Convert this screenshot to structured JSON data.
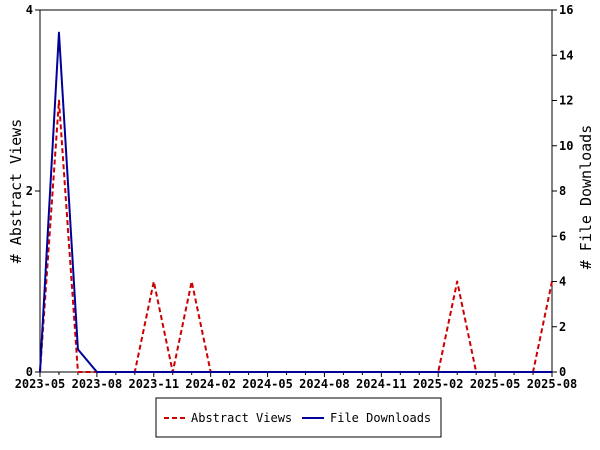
{
  "chart_data": {
    "type": "line",
    "x_labels": [
      "2023-05",
      "2023-08",
      "2023-11",
      "2024-02",
      "2024-05",
      "2024-08",
      "2024-11",
      "2025-02",
      "2025-05",
      "2025-08"
    ],
    "y_left": {
      "label": "# Abstract Views",
      "range": [
        0,
        4
      ],
      "ticks": [
        0,
        2,
        4
      ]
    },
    "y_right": {
      "label": "# File Downloads",
      "range": [
        0,
        16
      ],
      "ticks": [
        0,
        2,
        4,
        6,
        8,
        10,
        12,
        14,
        16
      ]
    },
    "months": [
      "2023-05",
      "2023-06",
      "2023-07",
      "2023-08",
      "2023-09",
      "2023-10",
      "2023-11",
      "2023-12",
      "2024-01",
      "2024-02",
      "2024-03",
      "2024-04",
      "2024-05",
      "2024-06",
      "2024-07",
      "2024-08",
      "2024-09",
      "2024-10",
      "2024-11",
      "2024-12",
      "2025-01",
      "2025-02",
      "2025-03",
      "2025-04",
      "2025-05",
      "2025-06",
      "2025-07",
      "2025-08"
    ],
    "series": [
      {
        "name": "Abstract Views",
        "axis": "left",
        "color": "#cc0000",
        "dash": "dashed",
        "values": [
          0,
          3,
          0,
          0,
          0,
          0,
          1,
          0,
          1,
          0,
          0,
          0,
          0,
          0,
          0,
          0,
          0,
          0,
          0,
          0,
          0,
          0,
          1,
          0,
          0,
          0,
          0,
          1
        ]
      },
      {
        "name": "File Downloads",
        "axis": "right",
        "color": "#000099",
        "dash": "solid",
        "values": [
          0,
          15,
          1,
          0,
          0,
          0,
          0,
          0,
          0,
          0,
          0,
          0,
          0,
          0,
          0,
          0,
          0,
          0,
          0,
          0,
          0,
          0,
          0,
          0,
          0,
          0,
          0,
          0
        ]
      }
    ],
    "legend": {
      "placement": "bottom-center"
    },
    "grid": false
  }
}
